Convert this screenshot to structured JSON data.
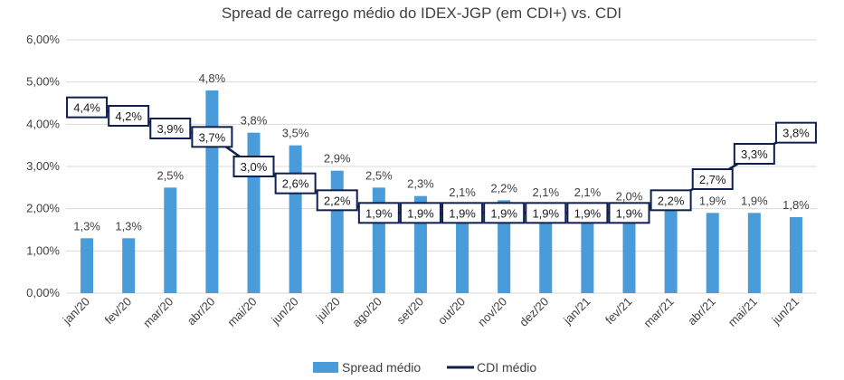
{
  "chart_data": {
    "type": "bar",
    "title": "Spread de carrego médio do IDEX-JGP (em CDI+) vs. CDI",
    "categories": [
      "jan/20",
      "fev/20",
      "mar/20",
      "abr/20",
      "mai/20",
      "jun/20",
      "jul/20",
      "ago/20",
      "set/20",
      "out/20",
      "nov/20",
      "dez/20",
      "jan/21",
      "fev/21",
      "mar/21",
      "abr/21",
      "mai/21",
      "jun/21"
    ],
    "y_ticks": [
      "0,00%",
      "1,00%",
      "2,00%",
      "3,00%",
      "4,00%",
      "5,00%",
      "6,00%"
    ],
    "ylim": [
      0,
      6
    ],
    "grid": true,
    "legend_position": "bottom",
    "series": [
      {
        "name": "Spread médio",
        "kind": "bar",
        "color": "#4a9bd9",
        "values": [
          1.3,
          1.3,
          2.5,
          4.8,
          3.8,
          3.5,
          2.9,
          2.5,
          2.3,
          2.1,
          2.2,
          2.1,
          2.1,
          2.0,
          2.1,
          1.9,
          1.9,
          1.8
        ],
        "labels": [
          "1,3%",
          "1,3%",
          "2,5%",
          "4,8%",
          "3,8%",
          "3,5%",
          "2,9%",
          "2,5%",
          "2,3%",
          "2,1%",
          "2,2%",
          "2,1%",
          "2,1%",
          "2,0%",
          "",
          "1,9%",
          "1,9%",
          "1,8%"
        ]
      },
      {
        "name": "CDI médio",
        "kind": "line",
        "color": "#0f1f4f",
        "values": [
          4.4,
          4.2,
          3.9,
          3.7,
          3.0,
          2.6,
          2.2,
          1.9,
          1.9,
          1.9,
          1.9,
          1.9,
          1.9,
          1.9,
          2.2,
          2.7,
          3.3,
          3.8
        ],
        "labels": [
          "4,4%",
          "4,2%",
          "3,9%",
          "3,7%",
          "3,0%",
          "2,6%",
          "2,2%",
          "1,9%",
          "1,9%",
          "1,9%",
          "1,9%",
          "1,9%",
          "1,9%",
          "1,9%",
          "2,2%",
          "2,7%",
          "3,3%",
          "3,8%"
        ]
      }
    ]
  }
}
